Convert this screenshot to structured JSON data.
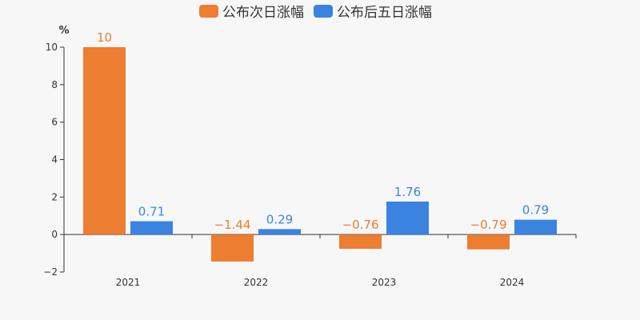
{
  "chart_data": {
    "type": "bar",
    "categories": [
      "2021",
      "2022",
      "2023",
      "2024"
    ],
    "series": [
      {
        "name": "公布次日涨幅",
        "color": "#ed7d31",
        "values": [
          10,
          -1.44,
          -0.76,
          -0.79
        ],
        "labels": [
          "10",
          "−1.44",
          "−0.76",
          "−0.79"
        ]
      },
      {
        "name": "公布后五日涨幅",
        "color": "#3a84e0",
        "values": [
          0.71,
          0.29,
          1.76,
          0.79
        ],
        "labels": [
          "0.71",
          "0.29",
          "1.76",
          "0.79"
        ]
      }
    ],
    "ylabel": "%",
    "ylim": [
      -2,
      10
    ],
    "yticks": [
      -2,
      0,
      2,
      4,
      6,
      8,
      10
    ],
    "ytick_labels": [
      "−2",
      "0",
      "2",
      "4",
      "6",
      "8",
      "10"
    ],
    "grid": false,
    "legend_position": "top-center"
  }
}
